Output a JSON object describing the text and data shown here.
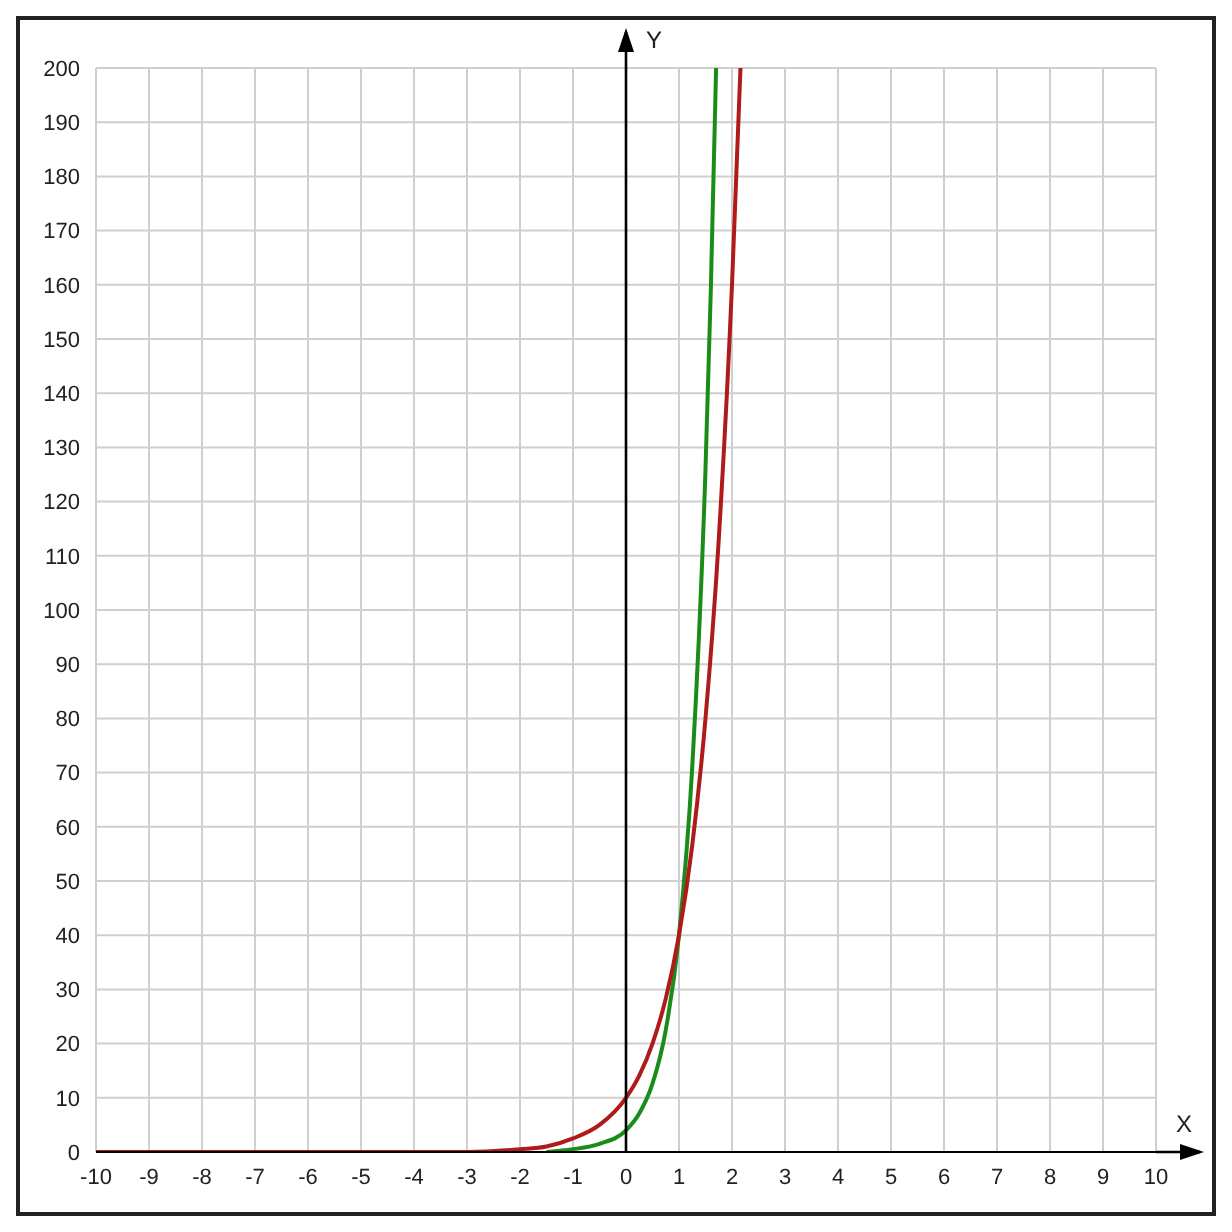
{
  "chart_data": {
    "type": "line",
    "xlabel": "X",
    "ylabel": "Y",
    "xlim": [
      -10,
      10
    ],
    "xticks": [
      -10,
      -9,
      -8,
      -7,
      -6,
      -5,
      -4,
      -3,
      -2,
      -1,
      0,
      1,
      2,
      3,
      4,
      5,
      6,
      7,
      8,
      9,
      10
    ],
    "ylim": [
      0,
      200
    ],
    "yticks": [
      0,
      10,
      20,
      30,
      40,
      50,
      60,
      70,
      80,
      90,
      100,
      110,
      120,
      130,
      140,
      150,
      160,
      170,
      180,
      190,
      200
    ],
    "grid": true,
    "legend": false,
    "marker": "none",
    "line_style": "solid",
    "series": [
      {
        "color": "#b01a1a",
        "x": [
          -10,
          -6,
          -4,
          -3,
          -2,
          -1.5,
          -1,
          -0.5,
          0,
          0.25,
          0.5,
          0.75,
          1,
          1.25,
          1.5,
          1.75,
          2,
          2.16
        ],
        "values": [
          0,
          0,
          0,
          0,
          0.5,
          1,
          2.5,
          5,
          10,
          14.1,
          20,
          28.3,
          40,
          56.6,
          80,
          113,
          160,
          200
        ]
      },
      {
        "color": "#1a8c1a",
        "x": [
          -1.5,
          -1,
          -0.5,
          0,
          0.25,
          0.5,
          0.75,
          1,
          1.25,
          1.5,
          1.6,
          1.7
        ],
        "values": [
          0,
          0.5,
          1.5,
          4,
          7.1,
          12.6,
          22.5,
          40,
          71,
          126,
          159,
          200
        ]
      }
    ]
  }
}
